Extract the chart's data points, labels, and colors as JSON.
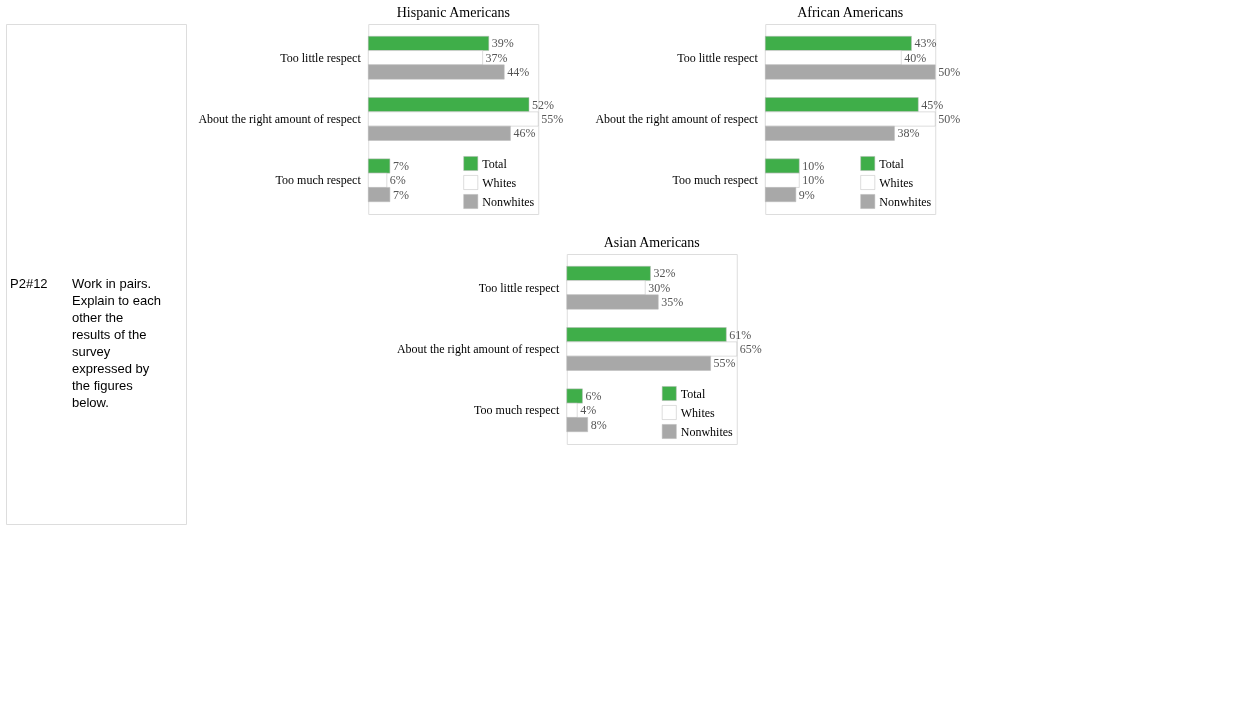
{
  "chart_data": [
    {
      "type": "other",
      "annotations": [
        "P2#12",
        "Work in pairs. Explain to each other the results of the survey expressed by the figures below."
      ]
    },
    {
      "type": "bar",
      "orientation": "horizontal",
      "title": "Hispanic Americans",
      "categories": [
        "Too little respect",
        "About the right amount of respect",
        "Too much respect"
      ],
      "legend": "bottom right",
      "series": [
        {
          "name": "Total",
          "color": "#3fae49",
          "values": [
            39,
            52,
            7
          ],
          "value_labels": [
            "39%",
            "52%",
            "7%"
          ]
        },
        {
          "name": "Whites",
          "color": "#ffffff",
          "values": [
            37,
            55,
            6
          ],
          "value_labels": [
            "37%",
            "55%",
            "6%"
          ]
        },
        {
          "name": "Nonwhites",
          "color": "#a8a8a8",
          "values": [
            44,
            46,
            7
          ],
          "value_labels": [
            "44%",
            "46%",
            "7%"
          ]
        }
      ]
    },
    {
      "type": "bar",
      "orientation": "horizontal",
      "title": "African Americans",
      "categories": [
        "Too little respect",
        "About the right amount of respect",
        "Too much respect"
      ],
      "legend": "bottom right",
      "series": [
        {
          "name": "Total",
          "color": "#3fae49",
          "values": [
            43,
            45,
            10
          ],
          "value_labels": [
            "43%",
            "45%",
            "10%"
          ]
        },
        {
          "name": "Whites",
          "color": "#ffffff",
          "values": [
            40,
            50,
            10
          ],
          "value_labels": [
            "40%",
            "50%",
            "10%"
          ]
        },
        {
          "name": "Nonwhites",
          "color": "#a8a8a8",
          "values": [
            50,
            38,
            9
          ],
          "value_labels": [
            "50%",
            "38%",
            "9%"
          ]
        }
      ]
    },
    {
      "type": "bar",
      "orientation": "horizontal",
      "title": "Asian Americans",
      "categories": [
        "Too little respect",
        "About the right amount of respect",
        "Too much respect"
      ],
      "legend": "bottom right",
      "series": [
        {
          "name": "Total",
          "color": "#3fae49",
          "values": [
            32,
            61,
            6
          ],
          "value_labels": [
            "32%",
            "61%",
            "6%"
          ]
        },
        {
          "name": "Whites",
          "color": "#ffffff",
          "values": [
            30,
            65,
            4
          ],
          "value_labels": [
            "30%",
            "65%",
            "4%"
          ]
        },
        {
          "name": "Nonwhites",
          "color": "#a8a8a8",
          "values": [
            35,
            55,
            8
          ],
          "value_labels": [
            "35%",
            "55%",
            "8%"
          ]
        }
      ]
    }
  ]
}
